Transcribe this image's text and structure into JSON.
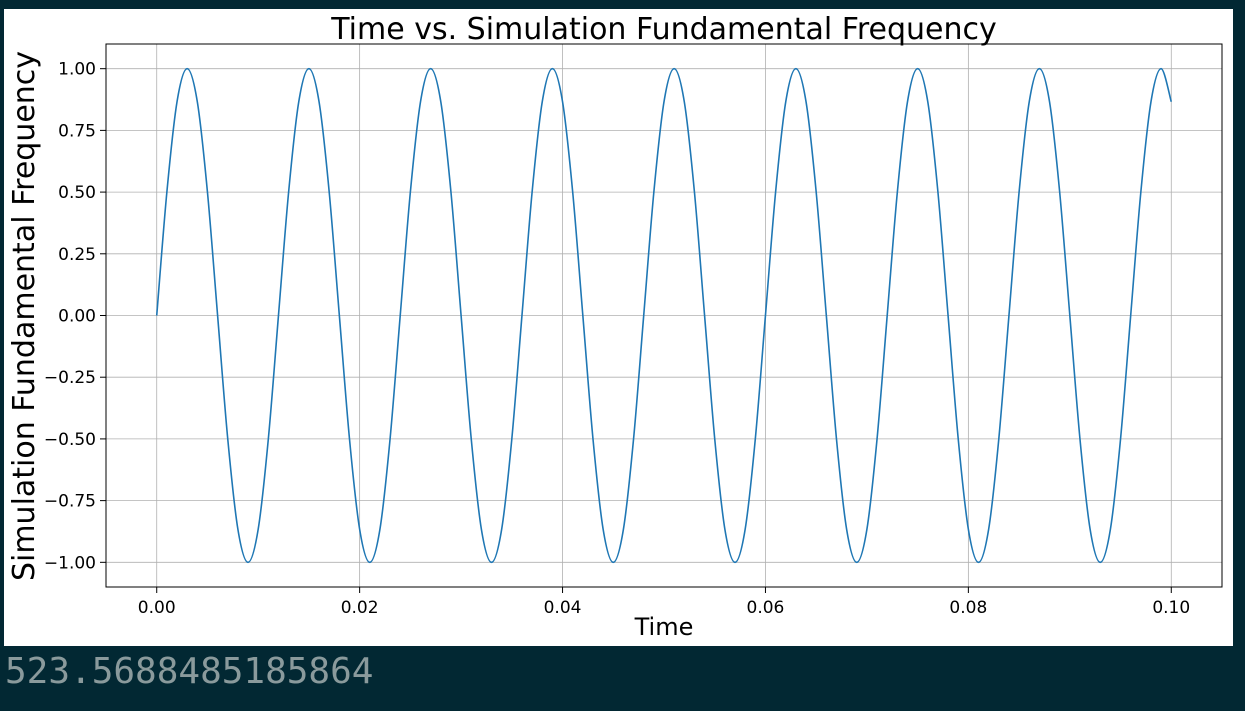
{
  "colors": {
    "background": "#022833",
    "panel": "#ffffff",
    "line": "#1f77b4",
    "grid": "#b0b0b0",
    "output_text": "#8a9a9c"
  },
  "output": {
    "value": "523.5688485185864"
  },
  "chart_data": {
    "type": "line",
    "title": "Time vs. Simulation Fundamental Frequency",
    "xlabel": "Time",
    "ylabel": "Simulation Fundamental Frequency",
    "xlim": [
      -0.005,
      0.105
    ],
    "ylim": [
      -1.1,
      1.1
    ],
    "grid": true,
    "legend": "none",
    "x_ticks": [
      0.0,
      0.02,
      0.04,
      0.06,
      0.08,
      0.1
    ],
    "x_tick_labels": [
      "0.00",
      "0.02",
      "0.04",
      "0.06",
      "0.08",
      "0.10"
    ],
    "y_ticks": [
      1.0,
      0.75,
      0.5,
      0.25,
      0.0,
      -0.25,
      -0.5,
      -0.75,
      -1.0
    ],
    "y_tick_labels": [
      "1.00",
      "0.75",
      "0.50",
      "0.25",
      "0.00",
      "−0.25",
      "−0.50",
      "−0.75",
      "−1.00"
    ],
    "series": [
      {
        "x": [
          0.0,
          0.001,
          0.002,
          0.003,
          0.004,
          0.005,
          0.006,
          0.007,
          0.008,
          0.009,
          0.01,
          0.011,
          0.012,
          0.013,
          0.014,
          0.015,
          0.016,
          0.017,
          0.018,
          0.019,
          0.02,
          0.021,
          0.022,
          0.023,
          0.024,
          0.025,
          0.026,
          0.027,
          0.028,
          0.029,
          0.03,
          0.031,
          0.032,
          0.033,
          0.034,
          0.035,
          0.036,
          0.037,
          0.038,
          0.039,
          0.04,
          0.041,
          0.042,
          0.043,
          0.044,
          0.045,
          0.046,
          0.047,
          0.048,
          0.049,
          0.05,
          0.051,
          0.052,
          0.053,
          0.054,
          0.055,
          0.056,
          0.057,
          0.058,
          0.059,
          0.06,
          0.061,
          0.062,
          0.063,
          0.064,
          0.065,
          0.066,
          0.067,
          0.068,
          0.069,
          0.07,
          0.071,
          0.072,
          0.073,
          0.074,
          0.075,
          0.076,
          0.077,
          0.078,
          0.079,
          0.08,
          0.081,
          0.082,
          0.083,
          0.084,
          0.085,
          0.086,
          0.087,
          0.088,
          0.089,
          0.09,
          0.091,
          0.092,
          0.093,
          0.094,
          0.095,
          0.096,
          0.097,
          0.098,
          0.099,
          0.1
        ],
        "values": [
          0.0,
          0.5,
          0.866,
          1.0,
          0.866,
          0.5,
          0.0,
          -0.5,
          -0.866,
          -1.0,
          -0.866,
          -0.5,
          0.0,
          0.5,
          0.866,
          1.0,
          0.866,
          0.5,
          0.0,
          -0.5,
          -0.866,
          -1.0,
          -0.866,
          -0.5,
          0.0,
          0.5,
          0.866,
          1.0,
          0.866,
          0.5,
          0.0,
          -0.5,
          -0.866,
          -1.0,
          -0.866,
          -0.5,
          0.0,
          0.5,
          0.866,
          1.0,
          0.866,
          0.5,
          0.0,
          -0.5,
          -0.866,
          -1.0,
          -0.866,
          -0.5,
          0.0,
          0.5,
          0.866,
          1.0,
          0.866,
          0.5,
          0.0,
          -0.5,
          -0.866,
          -1.0,
          -0.866,
          -0.5,
          0.0,
          0.5,
          0.866,
          1.0,
          0.866,
          0.5,
          0.0,
          -0.5,
          -0.866,
          -1.0,
          -0.866,
          -0.5,
          0.0,
          0.5,
          0.866,
          1.0,
          0.866,
          0.5,
          0.0,
          -0.5,
          -0.866,
          -1.0,
          -0.866,
          -0.5,
          0.0,
          0.5,
          0.866,
          1.0,
          0.866,
          0.5,
          0.0,
          -0.5,
          -0.866,
          -1.0,
          -0.866,
          -0.5,
          0.0,
          0.5,
          0.866,
          1.0,
          0.866
        ]
      }
    ]
  }
}
